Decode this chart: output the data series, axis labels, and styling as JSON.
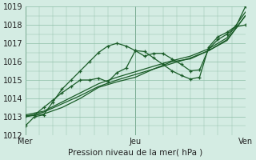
{
  "bg_color": "#d4ece3",
  "grid_color": "#8fbfa8",
  "line_color": "#1a5c28",
  "xlabel": "Pression niveau de la mer( hPa )",
  "xtick_labels": [
    "Mer",
    "Jeu",
    "Ven"
  ],
  "xtick_positions": [
    0,
    24,
    48
  ],
  "xlim": [
    0,
    48
  ],
  "ylim": [
    1012,
    1019
  ],
  "ytick_vals": [
    1012,
    1013,
    1014,
    1015,
    1016,
    1017,
    1018,
    1019
  ],
  "series": [
    {
      "x": [
        0,
        2,
        4,
        6,
        8,
        10,
        12,
        14,
        16,
        18,
        20,
        22,
        24,
        26,
        28,
        30,
        32,
        34,
        36,
        38,
        40,
        42,
        44,
        46,
        48
      ],
      "y": [
        1012.5,
        1013.0,
        1013.1,
        1013.8,
        1014.5,
        1015.0,
        1015.5,
        1016.0,
        1016.5,
        1016.85,
        1017.0,
        1016.85,
        1016.6,
        1016.3,
        1016.45,
        1016.45,
        1016.15,
        1015.85,
        1015.5,
        1015.55,
        1016.7,
        1017.2,
        1017.5,
        1017.9,
        1018.0
      ],
      "has_markers": true
    },
    {
      "x": [
        0,
        4,
        8,
        12,
        16,
        20,
        24,
        28,
        32,
        36,
        40,
        44,
        48
      ],
      "y": [
        1013.0,
        1013.15,
        1013.5,
        1014.0,
        1014.6,
        1014.9,
        1015.15,
        1015.6,
        1016.0,
        1016.15,
        1016.6,
        1017.15,
        1018.5
      ],
      "has_markers": false
    },
    {
      "x": [
        0,
        4,
        8,
        12,
        16,
        20,
        24,
        28,
        32,
        36,
        40,
        44,
        48
      ],
      "y": [
        1013.1,
        1013.3,
        1013.8,
        1014.3,
        1014.8,
        1015.15,
        1015.45,
        1015.75,
        1016.05,
        1016.3,
        1016.7,
        1017.3,
        1018.7
      ],
      "has_markers": false
    },
    {
      "x": [
        0,
        4,
        8,
        12,
        16,
        20,
        24,
        28,
        32,
        36,
        40,
        44,
        48
      ],
      "y": [
        1013.0,
        1013.25,
        1013.7,
        1014.15,
        1014.65,
        1015.0,
        1015.3,
        1015.6,
        1015.9,
        1016.2,
        1016.6,
        1017.2,
        1018.5
      ],
      "has_markers": false
    },
    {
      "x": [
        0,
        2,
        4,
        6,
        8,
        10,
        12,
        14,
        16,
        18,
        20,
        22,
        24,
        26,
        28,
        30,
        32,
        34,
        36,
        38,
        40,
        42,
        44,
        46,
        48
      ],
      "y": [
        1013.05,
        1013.1,
        1013.5,
        1013.9,
        1014.3,
        1014.65,
        1015.0,
        1015.0,
        1015.1,
        1014.9,
        1015.4,
        1015.65,
        1016.6,
        1016.55,
        1016.2,
        1015.85,
        1015.5,
        1015.25,
        1015.05,
        1015.15,
        1016.8,
        1017.35,
        1017.6,
        1017.95,
        1019.0
      ],
      "has_markers": true
    }
  ]
}
